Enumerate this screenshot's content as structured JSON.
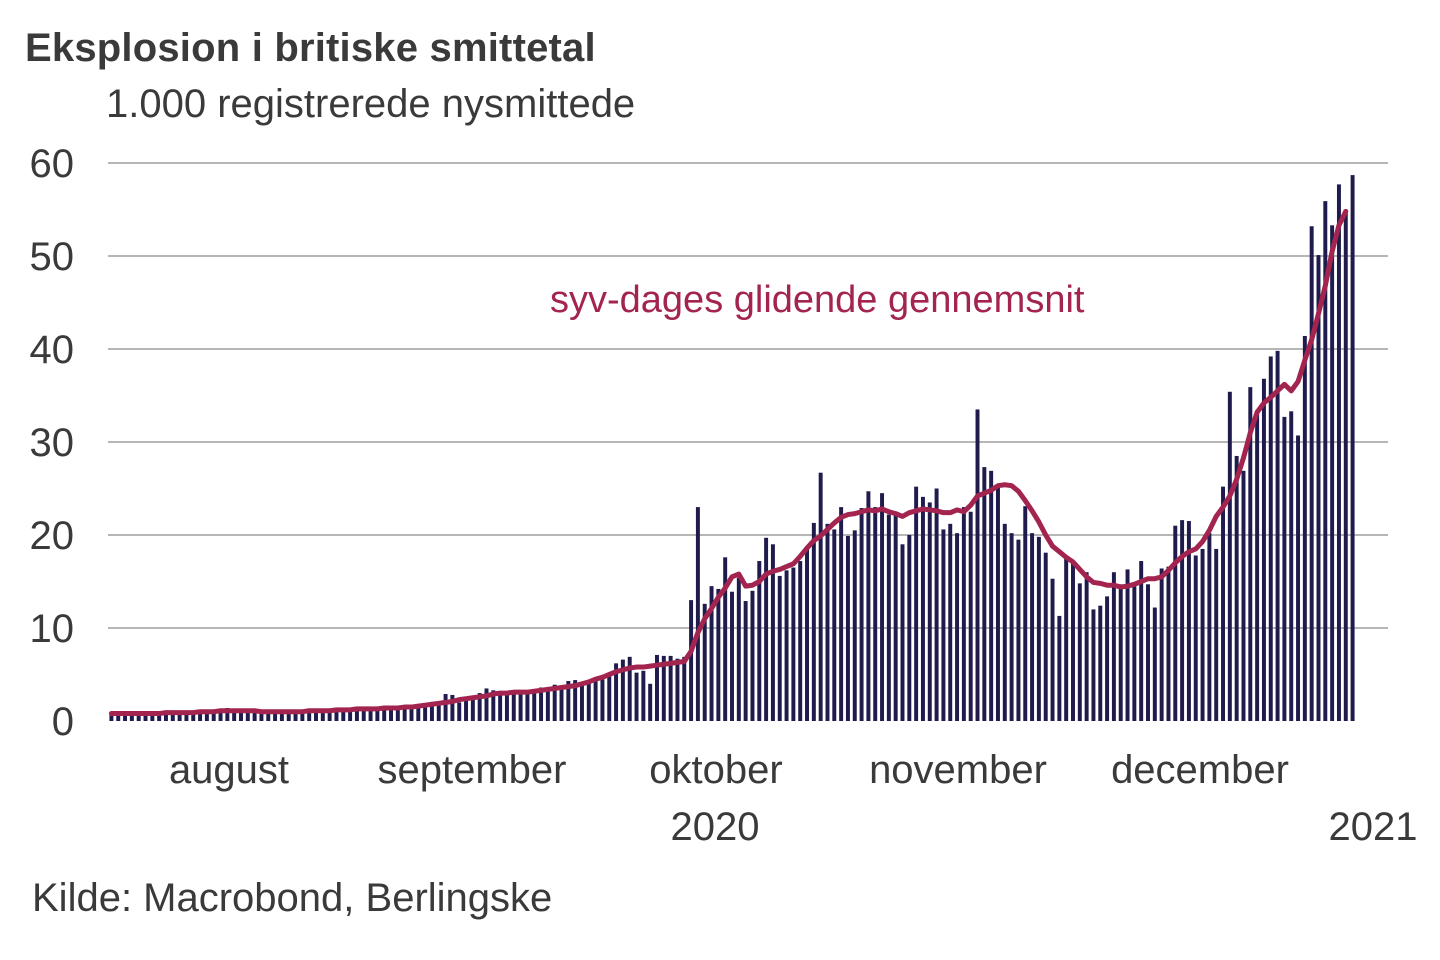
{
  "chart_data": {
    "type": "bar",
    "title": "Eksplosion i britiske smittetal",
    "subtitle": "1.000 registrerede nysmittede",
    "source": "Kilde: Macrobond, Berlingske",
    "ylim": [
      0,
      60
    ],
    "y_ticks": [
      0,
      10,
      20,
      30,
      40,
      50,
      60
    ],
    "x_month_labels": [
      "august",
      "september",
      "oktober",
      "november",
      "december"
    ],
    "x_year_labels": [
      "2020",
      "2021"
    ],
    "grid": true,
    "annotation": "syv-dages glidende gennemsnit",
    "colors": {
      "bars": "#1f1c4d",
      "line": "#a3244f",
      "grid": "#8a8a8a",
      "text": "#3a3a3a"
    },
    "series": [
      {
        "type": "bar",
        "values": [
          0.8,
          0.7,
          0.8,
          0.7,
          0.8,
          0.7,
          0.8,
          0.8,
          0.9,
          0.8,
          0.9,
          0.8,
          0.9,
          1.0,
          0.9,
          1.0,
          1.1,
          1.4,
          1.1,
          1.0,
          1.1,
          1.0,
          1.0,
          0.9,
          1.0,
          0.9,
          1.0,
          1.0,
          1.1,
          1.0,
          1.1,
          1.2,
          1.3,
          1.2,
          1.2,
          1.3,
          1.5,
          1.2,
          1.3,
          1.4,
          1.6,
          1.2,
          1.4,
          1.5,
          1.6,
          1.4,
          1.5,
          1.7,
          2.0,
          2.9,
          2.8,
          2.0,
          2.6,
          2.5,
          3.0,
          3.5,
          3.3,
          3.1,
          3.0,
          3.2,
          3.3,
          3.2,
          3.3,
          3.6,
          3.5,
          3.9,
          3.6,
          4.3,
          4.4,
          3.9,
          4.2,
          4.5,
          4.5,
          4.9,
          6.2,
          6.6,
          6.9,
          5.2,
          5.4,
          4.0,
          7.1,
          7.0,
          7.0,
          6.7,
          6.9,
          13.0,
          23.0,
          12.6,
          14.5,
          14.2,
          17.6,
          13.9,
          15.4,
          12.9,
          14.0,
          17.2,
          19.7,
          19.0,
          15.6,
          16.2,
          16.5,
          17.2,
          18.8,
          21.3,
          26.7,
          21.2,
          20.6,
          23.0,
          19.9,
          20.5,
          22.9,
          24.7,
          23.0,
          24.5,
          22.2,
          22.5,
          19.0,
          20.0,
          25.2,
          24.1,
          23.5,
          25.0,
          20.6,
          21.2,
          20.2,
          23.0,
          22.5,
          33.5,
          27.3,
          26.9,
          25.2,
          21.2,
          20.2,
          19.5,
          23.1,
          20.2,
          19.8,
          18.1,
          15.3,
          11.3,
          17.7,
          17.0,
          14.8,
          16.0,
          12.0,
          12.4,
          13.4,
          16.0,
          14.7,
          16.3,
          14.6,
          17.2,
          14.7,
          12.2,
          16.4,
          16.6,
          21.0,
          21.6,
          21.5,
          17.8,
          18.5,
          20.2,
          18.5,
          25.2,
          35.4,
          28.5,
          26.9,
          35.9,
          33.4,
          36.8,
          39.2,
          39.8,
          32.7,
          33.3,
          30.7,
          41.4,
          53.2,
          50.1,
          55.9,
          53.3,
          57.7,
          55.0,
          58.7
        ]
      },
      {
        "type": "line",
        "name": "syv-dages glidende gennemsnit",
        "values": [
          0.8,
          0.8,
          0.8,
          0.8,
          0.8,
          0.8,
          0.8,
          0.8,
          0.9,
          0.9,
          0.9,
          0.9,
          0.9,
          1.0,
          1.0,
          1.0,
          1.1,
          1.1,
          1.1,
          1.1,
          1.1,
          1.1,
          1.0,
          1.0,
          1.0,
          1.0,
          1.0,
          1.0,
          1.0,
          1.1,
          1.1,
          1.1,
          1.1,
          1.2,
          1.2,
          1.2,
          1.3,
          1.3,
          1.3,
          1.3,
          1.4,
          1.4,
          1.4,
          1.5,
          1.5,
          1.6,
          1.7,
          1.8,
          1.9,
          2.0,
          2.1,
          2.3,
          2.4,
          2.5,
          2.6,
          2.7,
          2.9,
          3.0,
          3.0,
          3.1,
          3.1,
          3.1,
          3.2,
          3.3,
          3.4,
          3.5,
          3.6,
          3.7,
          3.8,
          4.0,
          4.2,
          4.5,
          4.7,
          5.0,
          5.3,
          5.5,
          5.7,
          5.8,
          5.8,
          5.9,
          6.0,
          6.1,
          6.2,
          6.3,
          6.4,
          7.5,
          9.5,
          11.0,
          12.1,
          13.3,
          14.3,
          15.5,
          15.8,
          14.5,
          14.6,
          15.0,
          15.8,
          16.1,
          16.3,
          16.6,
          16.9,
          17.7,
          18.6,
          19.4,
          19.9,
          20.6,
          21.3,
          21.9,
          22.2,
          22.3,
          22.5,
          22.7,
          22.6,
          22.8,
          22.5,
          22.3,
          22.0,
          22.4,
          22.6,
          22.8,
          22.7,
          22.6,
          22.4,
          22.4,
          22.7,
          22.5,
          23.2,
          24.2,
          24.5,
          24.8,
          25.3,
          25.4,
          25.3,
          24.7,
          23.7,
          22.6,
          21.4,
          20.0,
          18.8,
          18.2,
          17.6,
          17.1,
          16.3,
          15.5,
          14.9,
          14.8,
          14.6,
          14.6,
          14.4,
          14.5,
          14.7,
          15.0,
          15.3,
          15.3,
          15.5,
          16.2,
          17.0,
          17.7,
          18.2,
          18.5,
          19.3,
          20.5,
          22.0,
          23.0,
          24.2,
          26.0,
          28.3,
          31.0,
          33.2,
          34.2,
          34.8,
          35.5,
          36.2,
          35.5,
          36.5,
          38.8,
          41.0,
          43.8,
          46.8,
          50.5,
          53.3,
          54.8
        ]
      }
    ]
  }
}
